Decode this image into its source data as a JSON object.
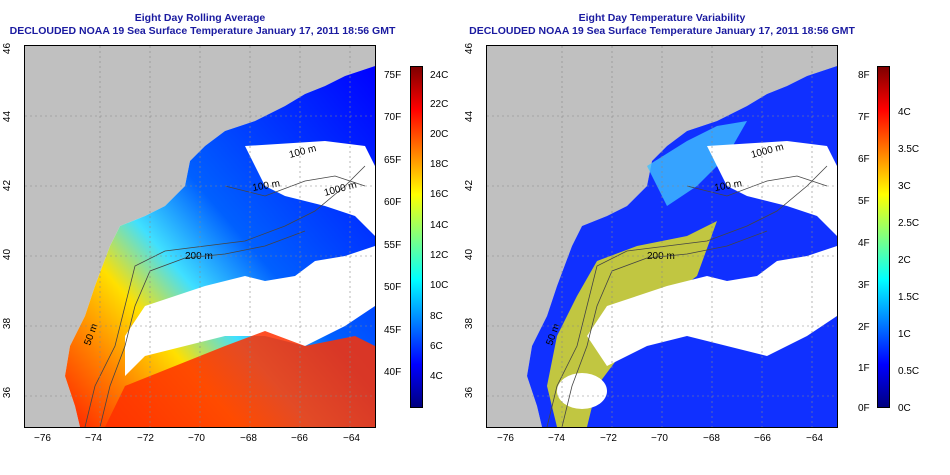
{
  "left": {
    "title_line1": "Eight Day Rolling Average",
    "title_line2": "DECLOUDED NOAA 19 Sea Surface Temperature January 17, 2011 18:56 GMT",
    "colorbar_fahrenheit": [
      "75F",
      "70F",
      "65F",
      "60F",
      "55F",
      "50F",
      "45F",
      "40F"
    ],
    "colorbar_celsius": [
      "24C",
      "22C",
      "20C",
      "18C",
      "16C",
      "14C",
      "12C",
      "10C",
      "8C",
      "6C",
      "4C"
    ]
  },
  "right": {
    "title_line1": "Eight Day Temperature Variability",
    "title_line2": "DECLOUDED NOAA 19 Sea Surface Temperature January 17, 2011 18:56 GMT",
    "colorbar_fahrenheit": [
      "8F",
      "7F",
      "6F",
      "5F",
      "4F",
      "3F",
      "2F",
      "1F",
      "0F"
    ],
    "colorbar_celsius": [
      "4C",
      "3.5C",
      "3C",
      "2.5C",
      "2C",
      "1.5C",
      "1C",
      "0.5C",
      "0C"
    ]
  },
  "axes": {
    "longitude_ticks": [
      "−76",
      "−74",
      "−72",
      "−70",
      "−68",
      "−66",
      "−64"
    ],
    "latitude_ticks": [
      "46",
      "44",
      "42",
      "40",
      "38",
      "36"
    ]
  },
  "contour_labels": [
    "100 m",
    "1000 m",
    "100 m",
    "200 m",
    "50 m",
    "1000 m",
    "100 m",
    "200 m",
    "50 m"
  ],
  "colors": {
    "title": "#1a1aa0",
    "land": "#c0c0c0",
    "nodata": "#ffffff",
    "sst_scale": [
      "#00007f",
      "#0000ff",
      "#0080ff",
      "#00ffff",
      "#80ff80",
      "#ffff00",
      "#ff8000",
      "#ff0000",
      "#7f0000"
    ]
  }
}
